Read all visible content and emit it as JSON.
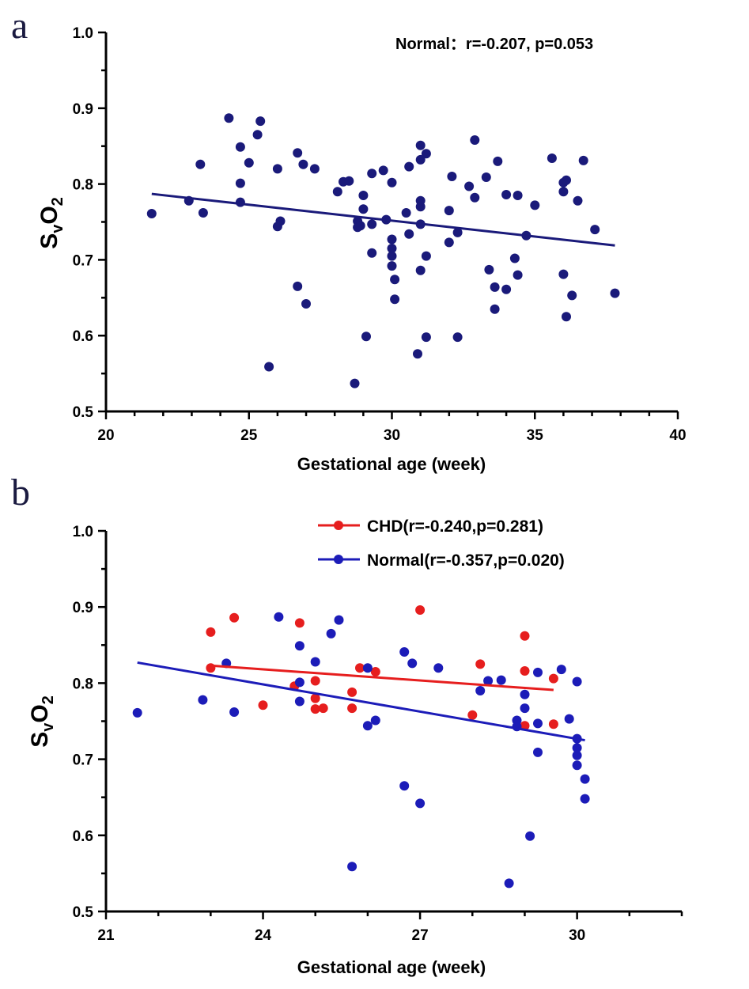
{
  "chart_data": [
    {
      "panel_label": "a",
      "type": "scatter",
      "xlabel": "Gestational age (week)",
      "ylabel": {
        "main": "S",
        "sub1": "v",
        "mid": "O",
        "sub2": "2"
      },
      "xlim": [
        20,
        40
      ],
      "ylim": [
        0.5,
        1.0
      ],
      "xticks": [
        "20",
        "25",
        "30",
        "35",
        "40"
      ],
      "yticks": [
        "0.5",
        "0.6",
        "0.7",
        "0.8",
        "0.9",
        "1.0"
      ],
      "annotation": "Normal：r=-0.207, p=0.053",
      "series": [
        {
          "name": "Normal",
          "color": "#1a1a7a",
          "fit": {
            "x": [
              21.6,
              37.8
            ],
            "y": [
              0.787,
              0.719
            ]
          },
          "points": [
            [
              21.6,
              0.761
            ],
            [
              22.9,
              0.778
            ],
            [
              23.3,
              0.826
            ],
            [
              23.4,
              0.762
            ],
            [
              24.3,
              0.887
            ],
            [
              24.7,
              0.849
            ],
            [
              24.7,
              0.801
            ],
            [
              24.7,
              0.776
            ],
            [
              25.0,
              0.828
            ],
            [
              25.3,
              0.865
            ],
            [
              25.4,
              0.883
            ],
            [
              25.7,
              0.559
            ],
            [
              26.0,
              0.82
            ],
            [
              26.0,
              0.744
            ],
            [
              26.1,
              0.751
            ],
            [
              26.7,
              0.841
            ],
            [
              26.7,
              0.665
            ],
            [
              26.9,
              0.826
            ],
            [
              27.0,
              0.642
            ],
            [
              27.3,
              0.82
            ],
            [
              28.1,
              0.79
            ],
            [
              28.3,
              0.803
            ],
            [
              28.5,
              0.804
            ],
            [
              28.7,
              0.537
            ],
            [
              28.8,
              0.751
            ],
            [
              28.8,
              0.743
            ],
            [
              28.9,
              0.745
            ],
            [
              29.0,
              0.785
            ],
            [
              29.0,
              0.767
            ],
            [
              29.1,
              0.599
            ],
            [
              29.3,
              0.814
            ],
            [
              29.3,
              0.747
            ],
            [
              29.3,
              0.709
            ],
            [
              29.7,
              0.818
            ],
            [
              29.8,
              0.753
            ],
            [
              30.0,
              0.802
            ],
            [
              30.0,
              0.727
            ],
            [
              30.0,
              0.715
            ],
            [
              30.0,
              0.705
            ],
            [
              30.0,
              0.692
            ],
            [
              30.1,
              0.674
            ],
            [
              30.1,
              0.648
            ],
            [
              30.5,
              0.762
            ],
            [
              30.6,
              0.823
            ],
            [
              30.6,
              0.734
            ],
            [
              30.9,
              0.576
            ],
            [
              31.0,
              0.851
            ],
            [
              31.0,
              0.832
            ],
            [
              31.0,
              0.778
            ],
            [
              31.0,
              0.77
            ],
            [
              31.0,
              0.747
            ],
            [
              31.0,
              0.686
            ],
            [
              31.2,
              0.84
            ],
            [
              31.2,
              0.705
            ],
            [
              31.2,
              0.598
            ],
            [
              32.0,
              0.765
            ],
            [
              32.0,
              0.723
            ],
            [
              32.1,
              0.81
            ],
            [
              32.3,
              0.736
            ],
            [
              32.3,
              0.598
            ],
            [
              32.7,
              0.797
            ],
            [
              32.9,
              0.858
            ],
            [
              32.9,
              0.782
            ],
            [
              33.3,
              0.809
            ],
            [
              33.4,
              0.687
            ],
            [
              33.6,
              0.664
            ],
            [
              33.6,
              0.635
            ],
            [
              33.7,
              0.83
            ],
            [
              34.0,
              0.786
            ],
            [
              34.0,
              0.661
            ],
            [
              34.3,
              0.702
            ],
            [
              34.4,
              0.785
            ],
            [
              34.4,
              0.68
            ],
            [
              34.7,
              0.732
            ],
            [
              35.0,
              0.772
            ],
            [
              35.6,
              0.834
            ],
            [
              36.0,
              0.802
            ],
            [
              36.0,
              0.79
            ],
            [
              36.0,
              0.681
            ],
            [
              36.1,
              0.805
            ],
            [
              36.1,
              0.625
            ],
            [
              36.3,
              0.653
            ],
            [
              36.5,
              0.778
            ],
            [
              36.7,
              0.831
            ],
            [
              37.1,
              0.74
            ],
            [
              37.8,
              0.656
            ]
          ]
        }
      ]
    },
    {
      "panel_label": "b",
      "type": "scatter",
      "xlabel": "Gestational age (week)",
      "ylabel": {
        "main": "S",
        "sub1": "v",
        "mid": "O",
        "sub2": "2"
      },
      "xlim": [
        21,
        32
      ],
      "ylim": [
        0.5,
        1.0
      ],
      "xticks": [
        "21",
        "24",
        "27",
        "30"
      ],
      "xtick_values": [
        21,
        24,
        27,
        30
      ],
      "yticks": [
        "0.5",
        "0.6",
        "0.7",
        "0.8",
        "0.9",
        "1.0"
      ],
      "legend_position": "top-right",
      "series": [
        {
          "name": "CHD(r=-0.240,p=0.281)",
          "color": "#e61e1e",
          "fit": {
            "x": [
              23.0,
              29.55
            ],
            "y": [
              0.823,
              0.791
            ]
          },
          "points": [
            [
              23.0,
              0.867
            ],
            [
              23.0,
              0.82
            ],
            [
              23.45,
              0.886
            ],
            [
              24.0,
              0.771
            ],
            [
              24.6,
              0.796
            ],
            [
              24.7,
              0.879
            ],
            [
              25.0,
              0.803
            ],
            [
              25.0,
              0.78
            ],
            [
              25.0,
              0.766
            ],
            [
              25.15,
              0.767
            ],
            [
              25.7,
              0.788
            ],
            [
              25.7,
              0.767
            ],
            [
              25.85,
              0.82
            ],
            [
              26.15,
              0.815
            ],
            [
              27.0,
              0.896
            ],
            [
              28.0,
              0.758
            ],
            [
              28.15,
              0.825
            ],
            [
              29.0,
              0.862
            ],
            [
              29.0,
              0.816
            ],
            [
              29.0,
              0.744
            ],
            [
              29.55,
              0.806
            ],
            [
              29.55,
              0.746
            ]
          ]
        },
        {
          "name": "Normal(r=-0.357,p=0.020)",
          "color": "#1c1cb8",
          "fit": {
            "x": [
              21.6,
              30.15
            ],
            "y": [
              0.827,
              0.725
            ]
          },
          "points": [
            [
              21.6,
              0.761
            ],
            [
              22.85,
              0.778
            ],
            [
              23.3,
              0.826
            ],
            [
              23.45,
              0.762
            ],
            [
              24.3,
              0.887
            ],
            [
              24.7,
              0.849
            ],
            [
              24.7,
              0.801
            ],
            [
              24.7,
              0.776
            ],
            [
              25.0,
              0.828
            ],
            [
              25.3,
              0.865
            ],
            [
              25.45,
              0.883
            ],
            [
              25.7,
              0.559
            ],
            [
              26.0,
              0.82
            ],
            [
              26.0,
              0.744
            ],
            [
              26.15,
              0.751
            ],
            [
              26.7,
              0.841
            ],
            [
              26.7,
              0.665
            ],
            [
              26.85,
              0.826
            ],
            [
              27.0,
              0.642
            ],
            [
              27.35,
              0.82
            ],
            [
              28.15,
              0.79
            ],
            [
              28.3,
              0.803
            ],
            [
              28.55,
              0.804
            ],
            [
              28.7,
              0.537
            ],
            [
              28.85,
              0.751
            ],
            [
              28.85,
              0.743
            ],
            [
              29.0,
              0.785
            ],
            [
              29.0,
              0.767
            ],
            [
              29.1,
              0.599
            ],
            [
              29.25,
              0.814
            ],
            [
              29.25,
              0.747
            ],
            [
              29.25,
              0.709
            ],
            [
              29.7,
              0.818
            ],
            [
              29.85,
              0.753
            ],
            [
              30.0,
              0.802
            ],
            [
              30.0,
              0.727
            ],
            [
              30.0,
              0.715
            ],
            [
              30.0,
              0.705
            ],
            [
              30.0,
              0.692
            ],
            [
              30.15,
              0.674
            ],
            [
              30.15,
              0.648
            ]
          ]
        }
      ]
    }
  ]
}
